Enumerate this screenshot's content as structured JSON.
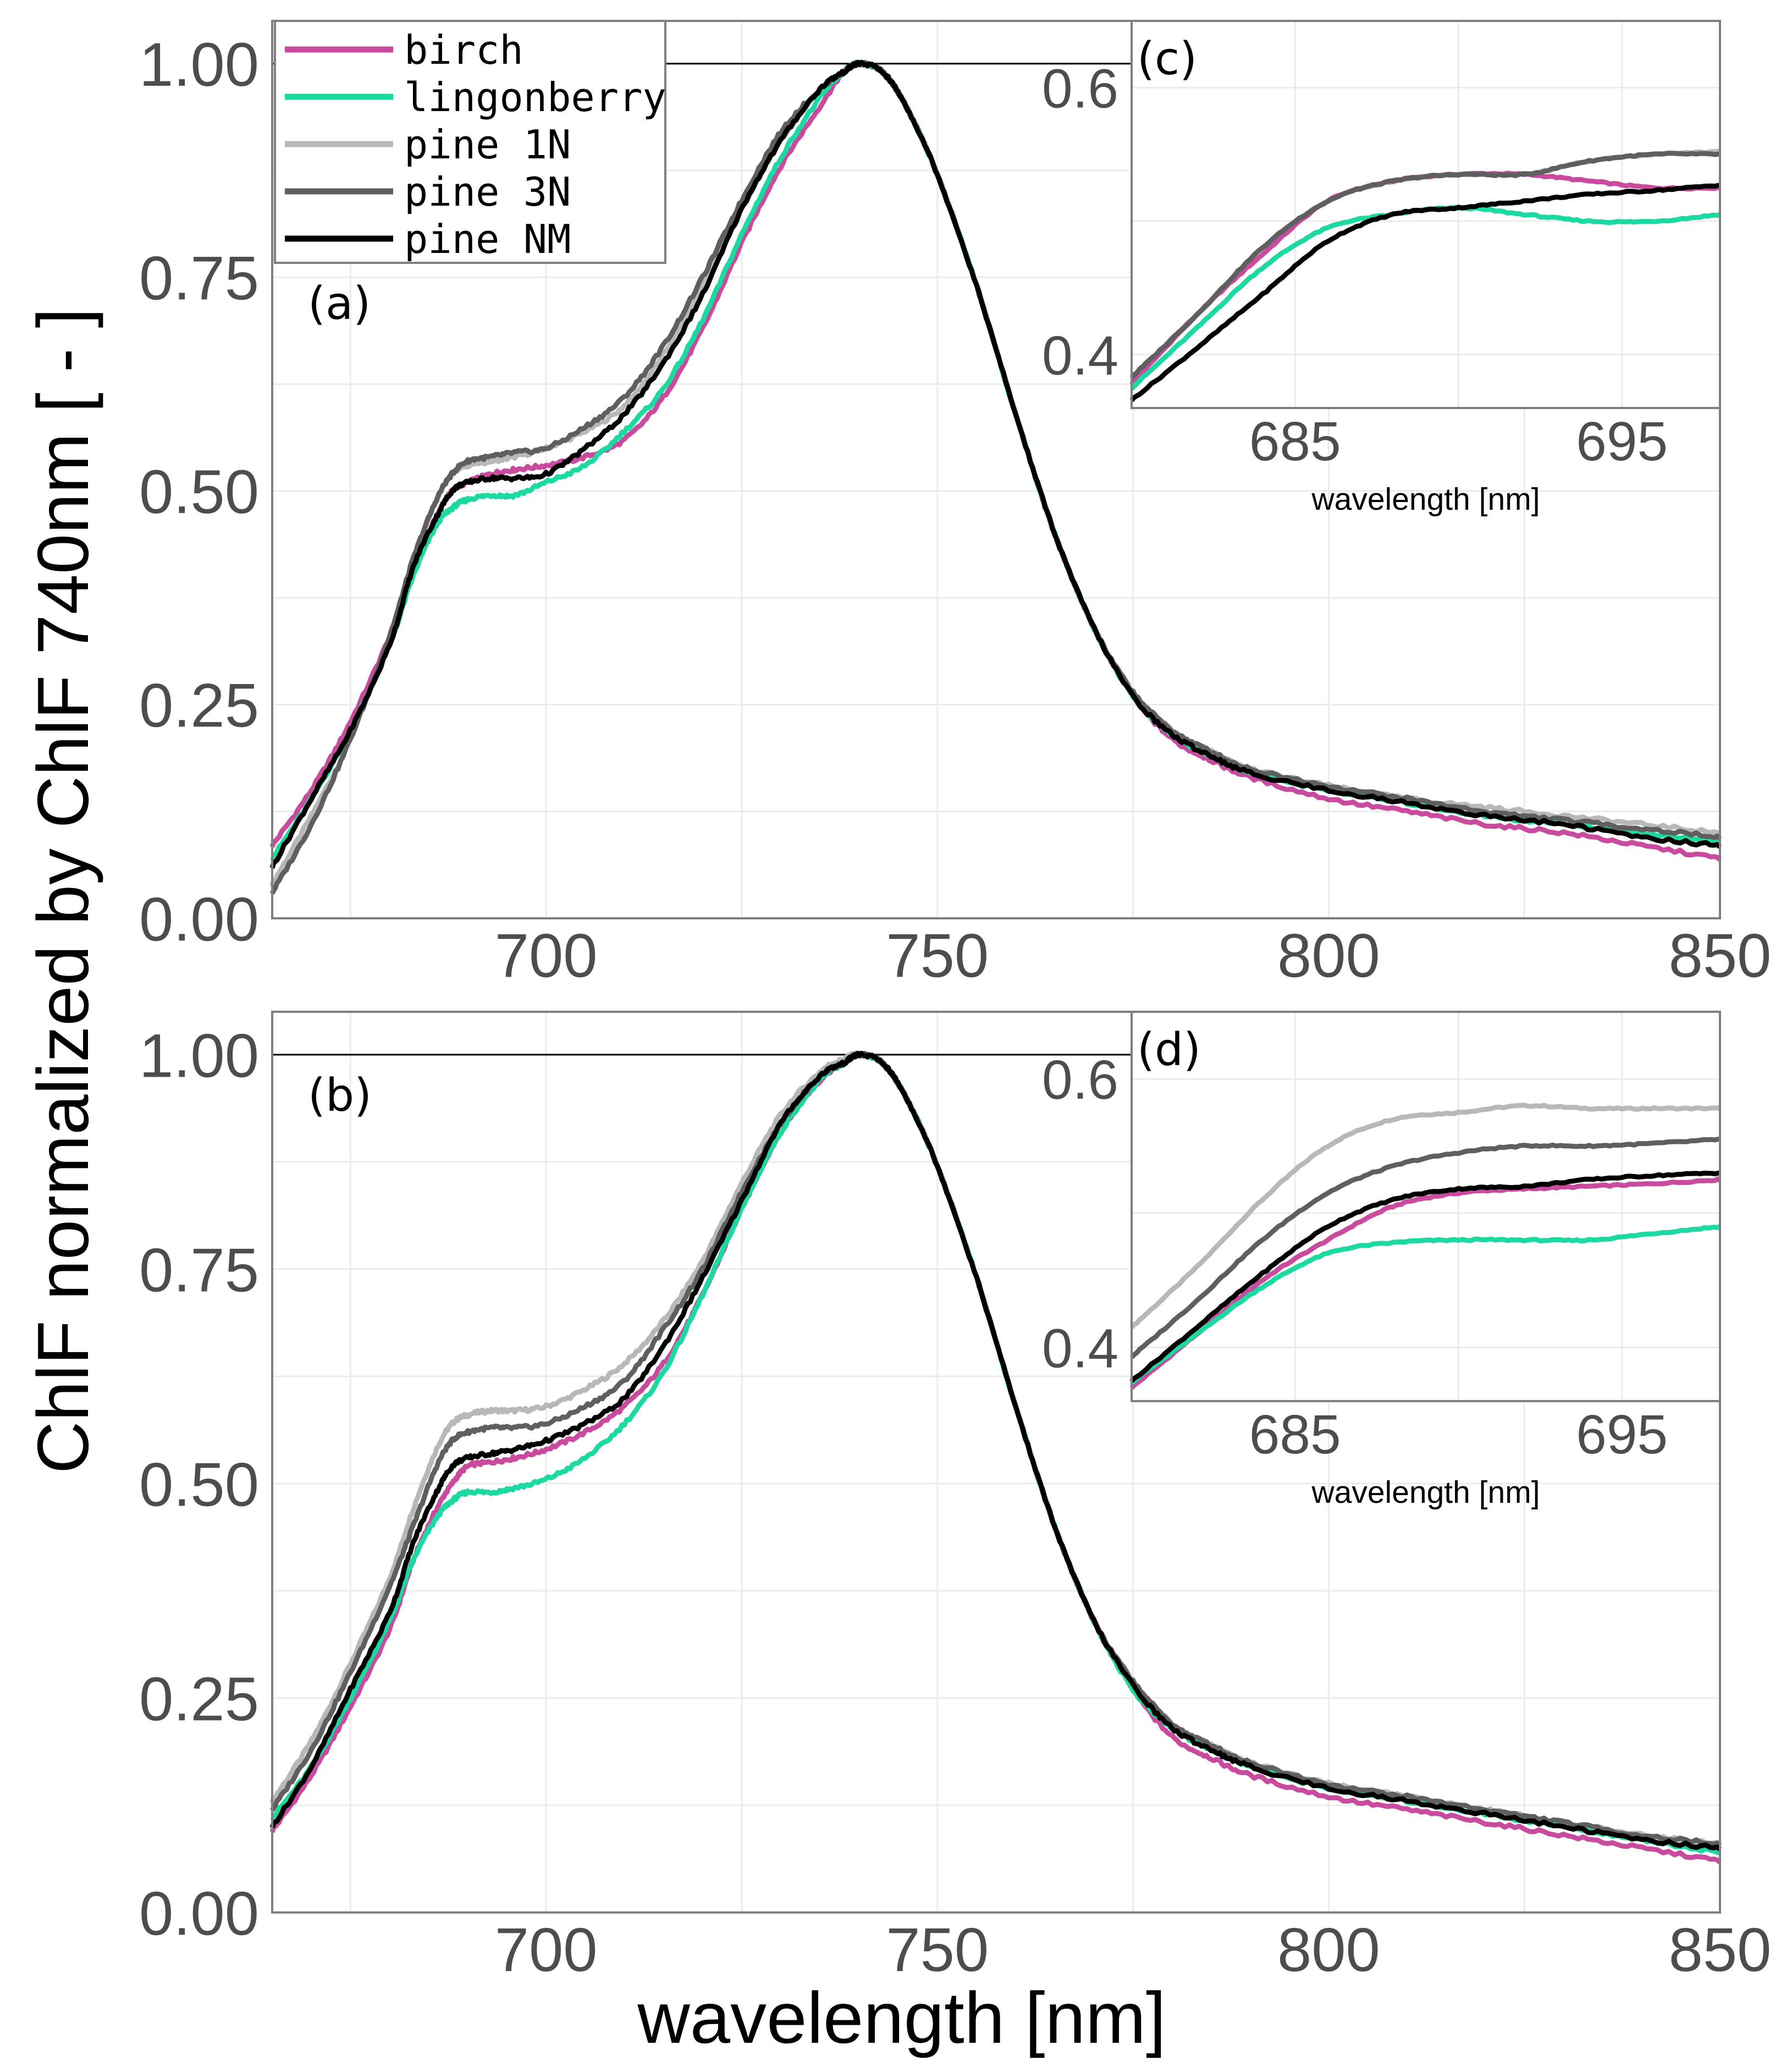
{
  "figure": {
    "ylabel": "ChlF normalized by ChlF 740nm [ - ]",
    "xlabel": "wavelength [nm]"
  },
  "legend": {
    "placement": "top-left",
    "entries": [
      {
        "label": "birch",
        "color": "#c84b9e"
      },
      {
        "label": "lingonberry",
        "color": "#1bd9a0"
      },
      {
        "label": "pine 1N",
        "color": "#b8b8b8"
      },
      {
        "label": "pine 3N",
        "color": "#5f5f5f"
      },
      {
        "label": "pine NM",
        "color": "#000000"
      }
    ]
  },
  "colors": {
    "birch": "#c84b9e",
    "lingonberry": "#1bd9a0",
    "pine 1N": "#b8b8b8",
    "pine 3N": "#5f5f5f",
    "pine NM": "#000000",
    "grid": "#ebebeb",
    "tick_text": "#4d4d4d"
  },
  "chart_data": [
    {
      "id": "a",
      "panel_label": "(a)",
      "type": "line",
      "grid": true,
      "xlim": [
        665,
        850
      ],
      "ylim": [
        0,
        1.05
      ],
      "xticks": [
        700,
        750,
        800,
        850
      ],
      "yticks": [
        0.0,
        0.25,
        0.5,
        0.75,
        1.0
      ],
      "ytick_labels": [
        "0.00",
        "0.25",
        "0.50",
        "0.75",
        "1.00"
      ],
      "reference_line_y": 1.0,
      "x": [
        665,
        670,
        675,
        680,
        683,
        686,
        688,
        690,
        693,
        696,
        700,
        705,
        710,
        715,
        720,
        725,
        730,
        735,
        738,
        740,
        743,
        746,
        750,
        755,
        760,
        765,
        770,
        775,
        780,
        785,
        790,
        800,
        810,
        820,
        830,
        840,
        850
      ],
      "series": [
        {
          "name": "birch",
          "values": [
            0.085,
            0.15,
            0.23,
            0.33,
            0.41,
            0.47,
            0.5,
            0.51,
            0.52,
            0.525,
            0.53,
            0.54,
            0.56,
            0.61,
            0.69,
            0.79,
            0.88,
            0.95,
            0.99,
            1.0,
            0.99,
            0.95,
            0.87,
            0.74,
            0.59,
            0.45,
            0.34,
            0.26,
            0.21,
            0.185,
            0.165,
            0.14,
            0.125,
            0.11,
            0.1,
            0.085,
            0.07
          ]
        },
        {
          "name": "lingonberry",
          "values": [
            0.07,
            0.14,
            0.22,
            0.32,
            0.4,
            0.46,
            0.48,
            0.49,
            0.495,
            0.495,
            0.51,
            0.53,
            0.57,
            0.62,
            0.7,
            0.8,
            0.89,
            0.96,
            0.99,
            1.0,
            0.99,
            0.95,
            0.87,
            0.74,
            0.59,
            0.45,
            0.34,
            0.26,
            0.215,
            0.19,
            0.17,
            0.15,
            0.135,
            0.12,
            0.11,
            0.1,
            0.09
          ]
        },
        {
          "name": "pine 1N",
          "values": [
            0.04,
            0.12,
            0.21,
            0.33,
            0.42,
            0.49,
            0.52,
            0.53,
            0.535,
            0.54,
            0.55,
            0.57,
            0.6,
            0.66,
            0.74,
            0.83,
            0.91,
            0.97,
            0.99,
            1.0,
            0.99,
            0.95,
            0.87,
            0.74,
            0.59,
            0.45,
            0.34,
            0.265,
            0.22,
            0.195,
            0.175,
            0.155,
            0.14,
            0.13,
            0.12,
            0.11,
            0.1
          ]
        },
        {
          "name": "pine 3N",
          "values": [
            0.03,
            0.11,
            0.21,
            0.33,
            0.42,
            0.49,
            0.52,
            0.535,
            0.54,
            0.545,
            0.55,
            0.575,
            0.61,
            0.67,
            0.75,
            0.84,
            0.92,
            0.97,
            0.99,
            1.0,
            0.99,
            0.95,
            0.87,
            0.74,
            0.59,
            0.45,
            0.34,
            0.265,
            0.22,
            0.195,
            0.175,
            0.155,
            0.14,
            0.125,
            0.115,
            0.105,
            0.095
          ]
        },
        {
          "name": "pine NM",
          "values": [
            0.06,
            0.14,
            0.22,
            0.32,
            0.41,
            0.47,
            0.5,
            0.51,
            0.515,
            0.515,
            0.52,
            0.55,
            0.59,
            0.65,
            0.73,
            0.83,
            0.91,
            0.97,
            0.99,
            1.0,
            0.99,
            0.95,
            0.87,
            0.74,
            0.59,
            0.45,
            0.34,
            0.26,
            0.215,
            0.19,
            0.17,
            0.15,
            0.135,
            0.12,
            0.11,
            0.095,
            0.085
          ]
        }
      ]
    },
    {
      "id": "b",
      "panel_label": "(b)",
      "type": "line",
      "grid": true,
      "xlim": [
        665,
        850
      ],
      "ylim": [
        0,
        1.05
      ],
      "xticks": [
        700,
        750,
        800,
        850
      ],
      "yticks": [
        0.0,
        0.25,
        0.5,
        0.75,
        1.0
      ],
      "ytick_labels": [
        "0.00",
        "0.25",
        "0.50",
        "0.75",
        "1.00"
      ],
      "xlabel": "wavelength [nm]",
      "reference_line_y": 1.0,
      "x": [
        665,
        670,
        675,
        680,
        683,
        686,
        688,
        690,
        693,
        696,
        700,
        705,
        710,
        715,
        720,
        725,
        730,
        735,
        738,
        740,
        743,
        746,
        750,
        755,
        760,
        765,
        770,
        775,
        780,
        785,
        790,
        800,
        810,
        820,
        830,
        840,
        850
      ],
      "series": [
        {
          "name": "birch",
          "values": [
            0.095,
            0.16,
            0.24,
            0.33,
            0.41,
            0.47,
            0.5,
            0.52,
            0.525,
            0.53,
            0.54,
            0.56,
            0.59,
            0.64,
            0.72,
            0.82,
            0.91,
            0.97,
            0.99,
            1.0,
            0.99,
            0.95,
            0.87,
            0.74,
            0.59,
            0.45,
            0.34,
            0.26,
            0.205,
            0.18,
            0.16,
            0.135,
            0.12,
            0.105,
            0.09,
            0.075,
            0.06
          ]
        },
        {
          "name": "lingonberry",
          "values": [
            0.11,
            0.17,
            0.25,
            0.34,
            0.41,
            0.46,
            0.48,
            0.49,
            0.49,
            0.495,
            0.505,
            0.53,
            0.57,
            0.63,
            0.72,
            0.82,
            0.91,
            0.97,
            0.99,
            1.0,
            0.99,
            0.95,
            0.87,
            0.74,
            0.59,
            0.45,
            0.34,
            0.26,
            0.215,
            0.19,
            0.17,
            0.145,
            0.13,
            0.115,
            0.1,
            0.085,
            0.07
          ]
        },
        {
          "name": "pine 1N",
          "values": [
            0.13,
            0.2,
            0.29,
            0.39,
            0.47,
            0.54,
            0.57,
            0.58,
            0.585,
            0.585,
            0.59,
            0.61,
            0.64,
            0.69,
            0.76,
            0.85,
            0.93,
            0.98,
            0.995,
            1.0,
            0.99,
            0.95,
            0.87,
            0.74,
            0.59,
            0.45,
            0.34,
            0.27,
            0.22,
            0.195,
            0.175,
            0.15,
            0.135,
            0.12,
            0.105,
            0.09,
            0.08
          ]
        },
        {
          "name": "pine 3N",
          "values": [
            0.12,
            0.19,
            0.28,
            0.38,
            0.45,
            0.52,
            0.55,
            0.56,
            0.565,
            0.565,
            0.57,
            0.59,
            0.62,
            0.68,
            0.75,
            0.84,
            0.92,
            0.975,
            0.99,
            1.0,
            0.99,
            0.95,
            0.87,
            0.74,
            0.59,
            0.45,
            0.34,
            0.27,
            0.22,
            0.195,
            0.175,
            0.15,
            0.135,
            0.12,
            0.105,
            0.09,
            0.08
          ]
        },
        {
          "name": "pine NM",
          "values": [
            0.1,
            0.17,
            0.26,
            0.35,
            0.43,
            0.49,
            0.52,
            0.53,
            0.535,
            0.54,
            0.55,
            0.57,
            0.6,
            0.66,
            0.74,
            0.83,
            0.92,
            0.975,
            0.99,
            1.0,
            0.99,
            0.95,
            0.87,
            0.74,
            0.59,
            0.45,
            0.34,
            0.265,
            0.215,
            0.19,
            0.17,
            0.145,
            0.13,
            0.115,
            0.1,
            0.085,
            0.075
          ]
        }
      ]
    },
    {
      "id": "c",
      "panel_label": "(c)",
      "type": "line",
      "inset_of": "a",
      "grid": true,
      "xlim": [
        680,
        698
      ],
      "ylim": [
        0.36,
        0.65
      ],
      "xticks": [
        685,
        695
      ],
      "yticks": [
        0.4,
        0.6
      ],
      "ytick_labels": [
        "0.4",
        "0.6"
      ],
      "xlabel": "wavelength [nm]",
      "x": [
        680,
        682,
        684,
        686,
        688,
        690,
        692,
        694,
        696,
        698
      ],
      "series": [
        {
          "name": "birch",
          "values": [
            0.378,
            0.43,
            0.475,
            0.515,
            0.53,
            0.535,
            0.535,
            0.53,
            0.525,
            0.525
          ]
        },
        {
          "name": "lingonberry",
          "values": [
            0.375,
            0.42,
            0.465,
            0.495,
            0.505,
            0.51,
            0.505,
            0.5,
            0.5,
            0.505
          ]
        },
        {
          "name": "pine 1N",
          "values": [
            0.383,
            0.43,
            0.48,
            0.515,
            0.53,
            0.535,
            0.535,
            0.545,
            0.55,
            0.552
          ]
        },
        {
          "name": "pine 3N",
          "values": [
            0.383,
            0.43,
            0.48,
            0.515,
            0.53,
            0.535,
            0.535,
            0.545,
            0.55,
            0.55
          ]
        },
        {
          "name": "pine NM",
          "values": [
            0.366,
            0.405,
            0.445,
            0.485,
            0.505,
            0.51,
            0.515,
            0.52,
            0.523,
            0.527
          ]
        }
      ]
    },
    {
      "id": "d",
      "panel_label": "(d)",
      "type": "line",
      "inset_of": "b",
      "grid": true,
      "xlim": [
        680,
        698
      ],
      "ylim": [
        0.36,
        0.65
      ],
      "xticks": [
        685,
        695
      ],
      "yticks": [
        0.4,
        0.6
      ],
      "ytick_labels": [
        "0.4",
        "0.6"
      ],
      "xlabel": "wavelength [nm]",
      "x": [
        680,
        682,
        684,
        686,
        688,
        690,
        692,
        694,
        696,
        698
      ],
      "series": [
        {
          "name": "birch",
          "values": [
            0.37,
            0.41,
            0.45,
            0.48,
            0.505,
            0.515,
            0.518,
            0.52,
            0.522,
            0.525
          ]
        },
        {
          "name": "lingonberry",
          "values": [
            0.374,
            0.41,
            0.445,
            0.47,
            0.478,
            0.48,
            0.48,
            0.48,
            0.485,
            0.49
          ]
        },
        {
          "name": "pine 1N",
          "values": [
            0.415,
            0.46,
            0.51,
            0.55,
            0.57,
            0.575,
            0.58,
            0.578,
            0.578,
            0.578
          ]
        },
        {
          "name": "pine 3N",
          "values": [
            0.393,
            0.435,
            0.48,
            0.515,
            0.535,
            0.545,
            0.55,
            0.55,
            0.552,
            0.555
          ]
        },
        {
          "name": "pine NM",
          "values": [
            0.375,
            0.415,
            0.455,
            0.49,
            0.51,
            0.518,
            0.52,
            0.525,
            0.528,
            0.53
          ]
        }
      ]
    }
  ]
}
